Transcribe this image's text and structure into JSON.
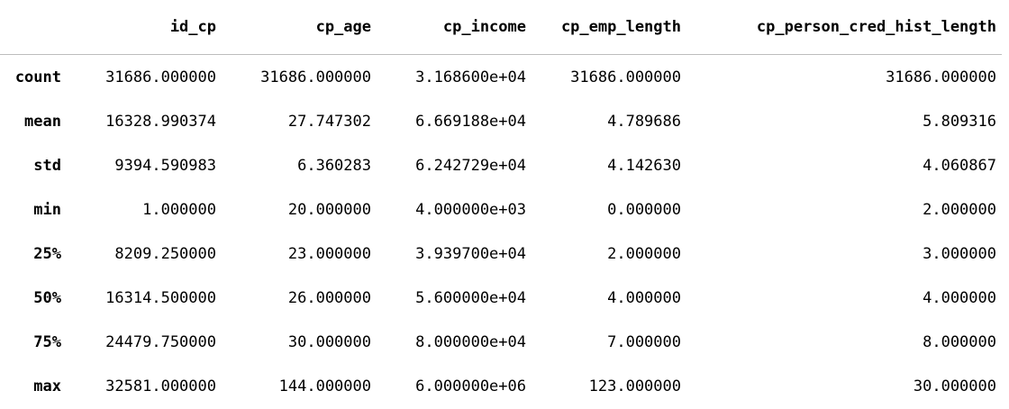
{
  "table": {
    "index_header": "",
    "columns": [
      "id_cp",
      "cp_age",
      "cp_income",
      "cp_emp_length",
      "cp_person_cred_hist_length"
    ],
    "rows": [
      {
        "label": "count",
        "cells": [
          "31686.000000",
          "31686.000000",
          "3.168600e+04",
          "31686.000000",
          "31686.000000"
        ]
      },
      {
        "label": "mean",
        "cells": [
          "16328.990374",
          "27.747302",
          "6.669188e+04",
          "4.789686",
          "5.809316"
        ]
      },
      {
        "label": "std",
        "cells": [
          "9394.590983",
          "6.360283",
          "6.242729e+04",
          "4.142630",
          "4.060867"
        ]
      },
      {
        "label": "min",
        "cells": [
          "1.000000",
          "20.000000",
          "4.000000e+03",
          "0.000000",
          "2.000000"
        ]
      },
      {
        "label": "25%",
        "cells": [
          "8209.250000",
          "23.000000",
          "3.939700e+04",
          "2.000000",
          "3.000000"
        ]
      },
      {
        "label": "50%",
        "cells": [
          "16314.500000",
          "26.000000",
          "5.600000e+04",
          "4.000000",
          "4.000000"
        ]
      },
      {
        "label": "75%",
        "cells": [
          "24479.750000",
          "30.000000",
          "8.000000e+04",
          "7.000000",
          "8.000000"
        ]
      },
      {
        "label": "max",
        "cells": [
          "32581.000000",
          "144.000000",
          "6.000000e+06",
          "123.000000",
          "30.000000"
        ]
      }
    ]
  }
}
